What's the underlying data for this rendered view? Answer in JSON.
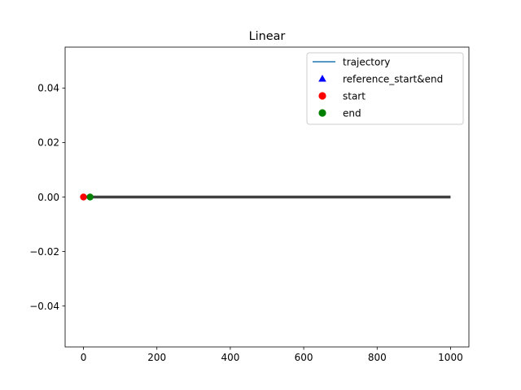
{
  "chart_data": {
    "type": "line",
    "title": "Linear",
    "xlabel": "",
    "ylabel": "",
    "xlim": [
      -50,
      1050
    ],
    "ylim": [
      -0.055,
      0.055
    ],
    "x_ticks": [
      0,
      200,
      400,
      600,
      800,
      1000
    ],
    "x_tick_labels": [
      "0",
      "200",
      "400",
      "600",
      "800",
      "1000"
    ],
    "y_ticks": [
      -0.04,
      -0.02,
      0.0,
      0.02,
      0.04
    ],
    "y_tick_labels": [
      "−0.04",
      "−0.02",
      "0.00",
      "0.02",
      "0.04"
    ],
    "grid": false,
    "legend_position": "top-right",
    "series": [
      {
        "name": "trajectory",
        "kind": "line",
        "color": "#1f77b4",
        "legend_marker": "line",
        "x": [
          0,
          20
        ],
        "y": [
          0,
          0
        ]
      },
      {
        "name": "reference_start&end",
        "kind": "scatter",
        "color": "#0000ff",
        "legend_marker": "triangle",
        "x": [],
        "y": []
      },
      {
        "name": "start",
        "kind": "scatter",
        "color": "#ff0000",
        "legend_marker": "circle",
        "x": [
          0
        ],
        "y": [
          0
        ]
      },
      {
        "name": "end",
        "kind": "scatter",
        "color": "#008000",
        "legend_marker": "circle",
        "x": [
          18
        ],
        "y": [
          0
        ]
      }
    ],
    "reference_line": {
      "color": "#404040",
      "x": [
        0,
        1000
      ],
      "y": [
        0,
        0
      ]
    }
  }
}
